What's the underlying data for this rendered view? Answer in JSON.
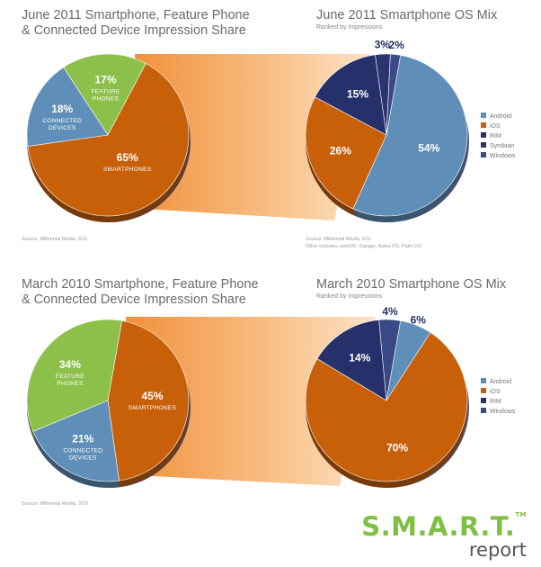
{
  "chart_data": [
    {
      "type": "pie",
      "title": "June 2011 Smartphone, Feature Phone & Connected Device Impression Share",
      "title_lines": [
        "June 2011 Smartphone, Feature Phone",
        "& Connected Device Impression Share"
      ],
      "source": "Source: Millennial Media, 6/11",
      "slices": [
        {
          "label": "Smartphones",
          "value": 65,
          "display": "65%",
          "label_lines": [
            "SMARTPHONES"
          ],
          "color": "#c8600a"
        },
        {
          "label": "Connected Devices",
          "value": 18,
          "display": "18%",
          "label_lines": [
            "CONNECTED",
            "DEVICES"
          ],
          "color": "#5f8fb8"
        },
        {
          "label": "Feature Phones",
          "value": 17,
          "display": "17%",
          "label_lines": [
            "FEATURE",
            "PHONES"
          ],
          "color": "#8dc04a"
        }
      ]
    },
    {
      "type": "pie",
      "title": "June 2011 Smartphone OS Mix",
      "subtitle": "Ranked by Impressions",
      "source_lines": [
        "Source: Millennial Media, 6/11",
        "Other includes: webOS, Danger, Nokia OS, Palm OS"
      ],
      "legend": [
        "Android",
        "iOS",
        "RIM",
        "Symbian",
        "Windows"
      ],
      "legend_placement": "right",
      "slices": [
        {
          "label": "Android",
          "value": 54,
          "display": "54%",
          "color": "#5f8fb8"
        },
        {
          "label": "iOS",
          "value": 26,
          "display": "26%",
          "color": "#c8600a"
        },
        {
          "label": "RIM",
          "value": 15,
          "display": "15%",
          "color": "#26306a"
        },
        {
          "label": "Symbian",
          "value": 3,
          "display": "3%",
          "color": "#2c3470"
        },
        {
          "label": "Windows",
          "value": 2,
          "display": "2%",
          "color": "#3b4a86"
        }
      ]
    },
    {
      "type": "pie",
      "title": "March 2010 Smartphone, Feature Phone & Connected Device Impression Share",
      "title_lines": [
        "March 2010 Smartphone, Feature Phone",
        "& Connected Device Impression Share"
      ],
      "source": "Source: Millennial Media, 3/10",
      "slices": [
        {
          "label": "Smartphones",
          "value": 45,
          "display": "45%",
          "label_lines": [
            "SMARTPHONES"
          ],
          "color": "#c8600a"
        },
        {
          "label": "Connected Devices",
          "value": 21,
          "display": "21%",
          "label_lines": [
            "CONNECTED",
            "DEVICES"
          ],
          "color": "#5f8fb8"
        },
        {
          "label": "Feature Phones",
          "value": 34,
          "display": "34%",
          "label_lines": [
            "FEATURE",
            "PHONES"
          ],
          "color": "#8dc04a"
        }
      ]
    },
    {
      "type": "pie",
      "title": "March 2010 Smartphone OS Mix",
      "subtitle": "Ranked by Impressions",
      "legend": [
        "Android",
        "iOS",
        "RIM",
        "Windows"
      ],
      "legend_placement": "right",
      "slices": [
        {
          "label": "Android",
          "value": 6,
          "display": "6%",
          "color": "#5f8fb8"
        },
        {
          "label": "iOS",
          "value": 70,
          "display": "70%",
          "color": "#c8600a"
        },
        {
          "label": "RIM",
          "value": 14,
          "display": "14%",
          "color": "#26306a"
        },
        {
          "label": "Windows",
          "value": 4,
          "display": "4%",
          "color": "#3b4a86"
        }
      ]
    }
  ],
  "brand": {
    "name": "S.M.A.R.T.",
    "tm": "TM",
    "sub": "report",
    "color": "#7dc042"
  }
}
